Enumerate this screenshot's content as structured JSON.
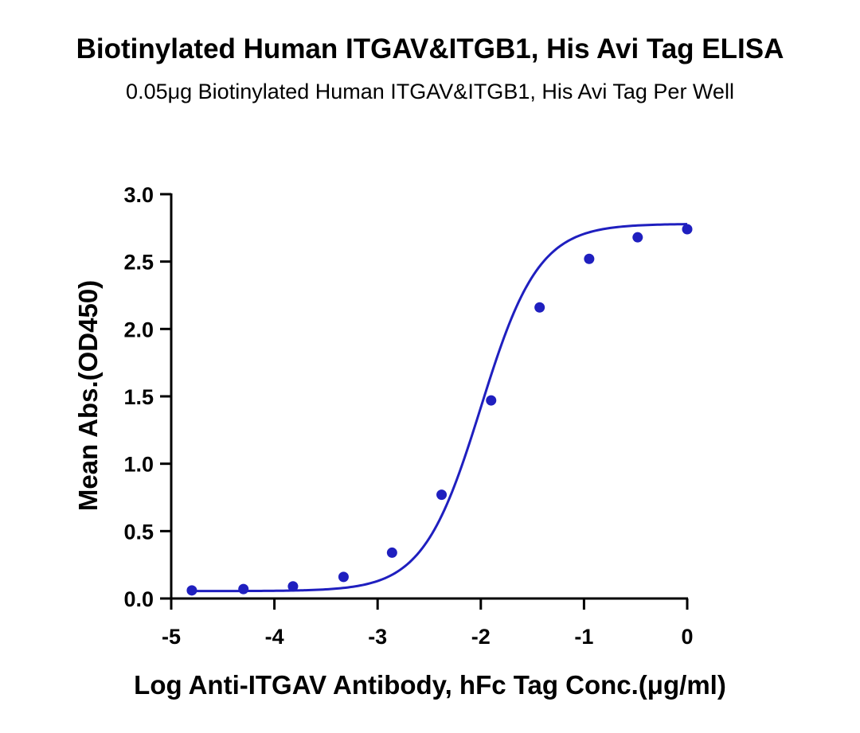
{
  "chart_data": {
    "type": "scatter",
    "title": "Biotinylated Human ITGAV&ITGB1, His Avi Tag ELISA",
    "subtitle": "0.05μg Biotinylated Human ITGAV&ITGB1, His Avi Tag Per Well",
    "xlabel": "Log Anti-ITGAV Antibody, hFc Tag Conc.(μg/ml)",
    "ylabel": "Mean Abs.(OD450)",
    "xlim": [
      -5,
      0
    ],
    "ylim": [
      0,
      3.0
    ],
    "x_ticks": [
      "-5",
      "-4",
      "-3",
      "-2",
      "-1",
      "0"
    ],
    "y_ticks": [
      "0.0",
      "0.5",
      "1.0",
      "1.5",
      "2.0",
      "2.5",
      "3.0"
    ],
    "grid": false,
    "legend": "none",
    "series_color": "#1f1fbf",
    "fit_curve": "four-parameter logistic",
    "x": [
      -4.8,
      -4.3,
      -3.82,
      -3.33,
      -2.86,
      -2.38,
      -1.9,
      -1.43,
      -0.95,
      -0.48,
      0.0
    ],
    "y": [
      0.06,
      0.07,
      0.09,
      0.16,
      0.34,
      0.77,
      1.47,
      2.16,
      2.52,
      2.68,
      2.74
    ]
  }
}
